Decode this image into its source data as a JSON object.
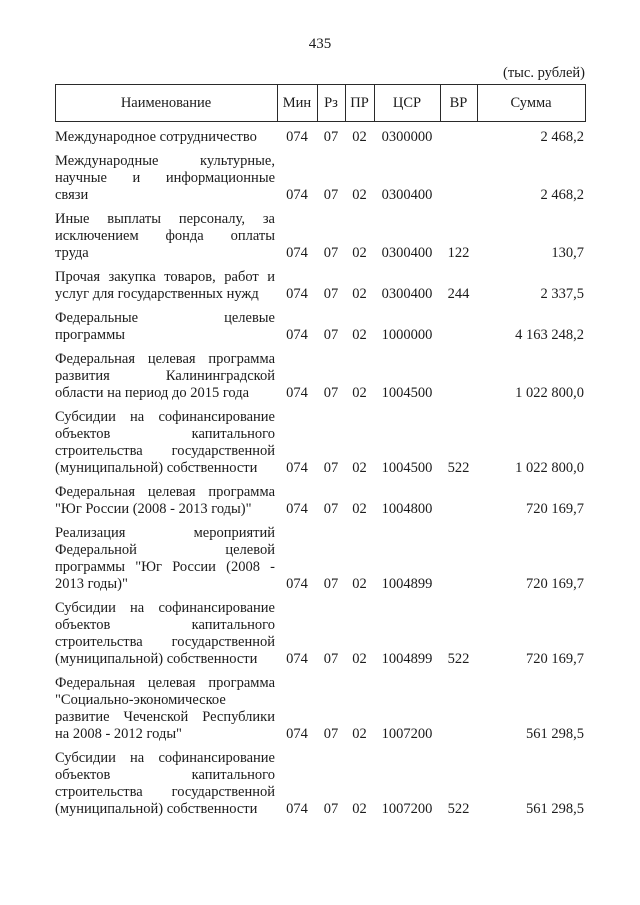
{
  "page": {
    "number": "435",
    "units_note": "(тыс. рублей)"
  },
  "table": {
    "columns": [
      "Наименование",
      "Мин",
      "Рз",
      "ПР",
      "ЦСР",
      "ВР",
      "Сумма"
    ],
    "rows": [
      {
        "name_lines": [
          "Международное сотрудничество"
        ],
        "min": "074",
        "rz": "07",
        "pr": "02",
        "csr": "0300000",
        "vr": "",
        "sum": "2 468,2"
      },
      {
        "name_lines": [
          "Международные культурные,",
          "научные и информационные",
          "связи"
        ],
        "min": "074",
        "rz": "07",
        "pr": "02",
        "csr": "0300400",
        "vr": "",
        "sum": "2 468,2"
      },
      {
        "name_lines": [
          "Иные выплаты персоналу, за",
          "исключением фонда оплаты",
          "труда"
        ],
        "min": "074",
        "rz": "07",
        "pr": "02",
        "csr": "0300400",
        "vr": "122",
        "sum": "130,7"
      },
      {
        "name_lines": [
          "Прочая закупка товаров, работ и",
          "услуг для государственных нужд"
        ],
        "min": "074",
        "rz": "07",
        "pr": "02",
        "csr": "0300400",
        "vr": "244",
        "sum": "2 337,5"
      },
      {
        "name_lines": [
          "Федеральные целевые",
          "программы"
        ],
        "min": "074",
        "rz": "07",
        "pr": "02",
        "csr": "1000000",
        "vr": "",
        "sum": "4 163 248,2"
      },
      {
        "name_lines": [
          "Федеральная целевая программа",
          "развития Калининградской",
          "области на период до 2015 года"
        ],
        "min": "074",
        "rz": "07",
        "pr": "02",
        "csr": "1004500",
        "vr": "",
        "sum": "1 022 800,0"
      },
      {
        "name_lines": [
          "Субсидии на софинансирование",
          "объектов капитального",
          "строительства государственной",
          "(муниципальной) собственности"
        ],
        "min": "074",
        "rz": "07",
        "pr": "02",
        "csr": "1004500",
        "vr": "522",
        "sum": "1 022 800,0"
      },
      {
        "name_lines": [
          "Федеральная целевая программа",
          "\"Юг России (2008 - 2013 годы)\""
        ],
        "min": "074",
        "rz": "07",
        "pr": "02",
        "csr": "1004800",
        "vr": "",
        "sum": "720 169,7"
      },
      {
        "name_lines": [
          "Реализация мероприятий",
          "Федеральной целевой",
          "программы \"Юг России (2008 -",
          "2013 годы)\""
        ],
        "min": "074",
        "rz": "07",
        "pr": "02",
        "csr": "1004899",
        "vr": "",
        "sum": "720 169,7"
      },
      {
        "name_lines": [
          "Субсидии на софинансирование",
          "объектов капитального",
          "строительства государственной",
          "(муниципальной) собственности"
        ],
        "min": "074",
        "rz": "07",
        "pr": "02",
        "csr": "1004899",
        "vr": "522",
        "sum": "720 169,7"
      },
      {
        "name_lines": [
          "Федеральная целевая программа",
          "\"Социально-экономическое",
          "развитие Чеченской Республики",
          "на 2008 - 2012 годы\""
        ],
        "min": "074",
        "rz": "07",
        "pr": "02",
        "csr": "1007200",
        "vr": "",
        "sum": "561 298,5"
      },
      {
        "name_lines": [
          "Субсидии на софинансирование",
          "объектов капитального",
          "строительства государственной",
          "(муниципальной) собственности"
        ],
        "min": "074",
        "rz": "07",
        "pr": "02",
        "csr": "1007200",
        "vr": "522",
        "sum": "561 298,5"
      }
    ]
  }
}
